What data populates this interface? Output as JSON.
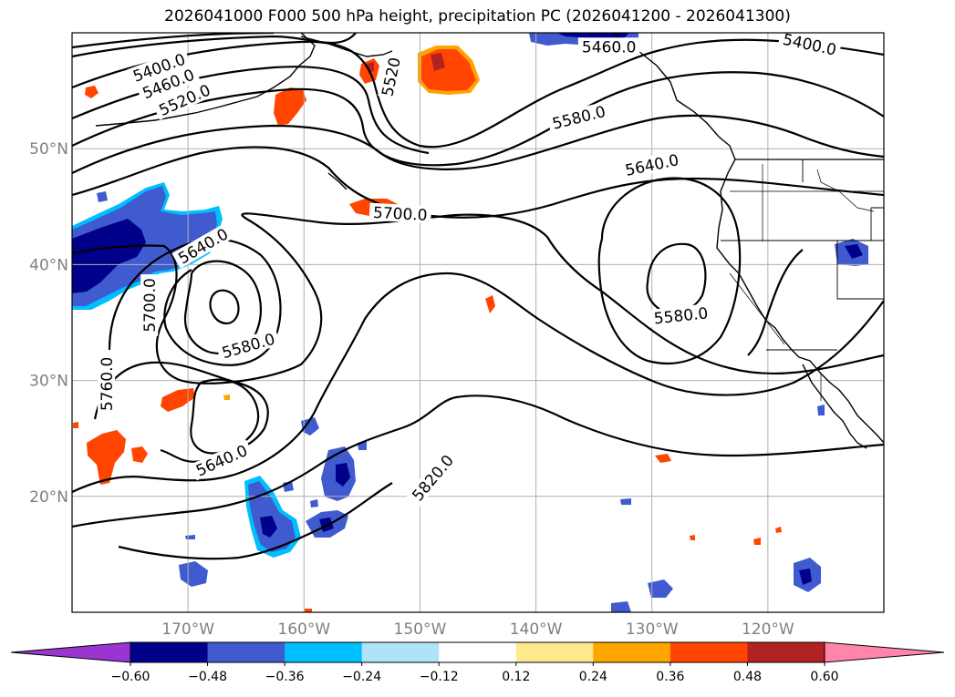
{
  "title": "2026041000 F000 500 hPa height, precipitation PC (2026041200 - 2026041300)",
  "map": {
    "extent": {
      "lon": [
        -180,
        -110
      ],
      "lat": [
        10,
        60
      ]
    },
    "lat_ticks": [
      {
        "value": 20,
        "label": "20°N"
      },
      {
        "value": 30,
        "label": "30°N"
      },
      {
        "value": 40,
        "label": "40°N"
      },
      {
        "value": 50,
        "label": "50°N"
      }
    ],
    "lon_ticks": [
      {
        "value": -170,
        "label": "170°W"
      },
      {
        "value": -160,
        "label": "160°W"
      },
      {
        "value": -150,
        "label": "150°W"
      },
      {
        "value": -140,
        "label": "140°W"
      },
      {
        "value": -130,
        "label": "130°W"
      },
      {
        "value": -120,
        "label": "120°W"
      }
    ],
    "gridlines": true,
    "contour_color": "#000000",
    "contour_labels": [
      {
        "text": "5400.0",
        "lon": -172.5,
        "lat": 57.0,
        "rot": -20
      },
      {
        "text": "5460.0",
        "lon": -171.7,
        "lat": 55.6,
        "rot": -22
      },
      {
        "text": "5520.0",
        "lon": -170.3,
        "lat": 54.2,
        "rot": -24
      },
      {
        "text": "5520",
        "lon": -152.5,
        "lat": 56.2,
        "rot": -78
      },
      {
        "text": "5460.0",
        "lon": -133.7,
        "lat": 58.8,
        "rot": 0
      },
      {
        "text": "5400.0",
        "lon": -116.4,
        "lat": 59.0,
        "rot": 12
      },
      {
        "text": "5580.0",
        "lon": -136.3,
        "lat": 52.7,
        "rot": -14
      },
      {
        "text": "5640.0",
        "lon": -130.0,
        "lat": 48.6,
        "rot": -12
      },
      {
        "text": "5700.0",
        "lon": -151.7,
        "lat": 44.4,
        "rot": 3
      },
      {
        "text": "5640.0",
        "lon": -168.7,
        "lat": 41.6,
        "rot": -30
      },
      {
        "text": "5700.0",
        "lon": -173.3,
        "lat": 36.5,
        "rot": -90
      },
      {
        "text": "5580.0",
        "lon": -164.8,
        "lat": 33.0,
        "rot": -16
      },
      {
        "text": "5580.0",
        "lon": -127.5,
        "lat": 35.6,
        "rot": -6
      },
      {
        "text": "5760.0",
        "lon": -177.0,
        "lat": 29.7,
        "rot": -90
      },
      {
        "text": "5640.0",
        "lon": -167.1,
        "lat": 23.1,
        "rot": -24
      },
      {
        "text": "5820.0",
        "lon": -148.9,
        "lat": 21.6,
        "rot": -50
      }
    ]
  },
  "colorbar": {
    "extend": "both",
    "under_color": "#9a35d2",
    "over_color": "#ff85aa",
    "colors": [
      "#00008b",
      "#3f5bcf",
      "#00bfff",
      "#aee3fa",
      "#ffffff",
      "#ffe98c",
      "#ffa500",
      "#ff4500",
      "#b22222"
    ],
    "ticks": [
      "−0.60",
      "−0.48",
      "−0.36",
      "−0.24",
      "−0.12",
      "0.12",
      "0.24",
      "0.36",
      "0.48",
      "0.60"
    ]
  }
}
